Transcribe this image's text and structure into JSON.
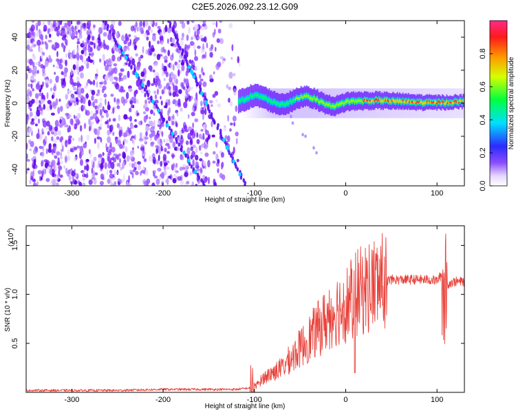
{
  "chart_data": [
    {
      "type": "heatmap",
      "title": "C2E5.2026.092.23.12.G09",
      "xlabel": "Height of straight line (km)",
      "ylabel": "Frequency (Hz)",
      "xlim": [
        -350,
        130
      ],
      "ylim": [
        -50,
        50
      ],
      "xticks": [
        -300,
        -200,
        -100,
        0,
        100
      ],
      "yticks": [
        -40,
        -20,
        0,
        20,
        40
      ],
      "colorbar": {
        "label": "Normalized spectral amplitude",
        "range": [
          0,
          1
        ],
        "ticks": [
          "0.0",
          "0.2",
          "0.4",
          "0.6",
          "0.8"
        ]
      },
      "features": {
        "noise_region_x": [
          -350,
          -110
        ],
        "tracked_signal_freq_hz": 0,
        "diagonal_track_1": [
          [
            -265,
            50
          ],
          [
            -155,
            -50
          ]
        ],
        "diagonal_track_2": [
          [
            -195,
            50
          ],
          [
            -110,
            -50
          ]
        ]
      }
    },
    {
      "type": "line",
      "xlabel": "Height of straight line (km)",
      "ylabel": "SNR (10 * v/v)",
      "y_multiplier": "(x10",
      "y_multiplier_exp": "4",
      "xlim": [
        -350,
        130
      ],
      "ylim": [
        0,
        1.7
      ],
      "xticks": [
        -300,
        -200,
        -100,
        0,
        100
      ],
      "yticks": [
        0.5,
        1.0,
        1.5
      ],
      "series": [
        {
          "name": "SNR",
          "color": "#e8413a",
          "x": [
            -350,
            -300,
            -250,
            -200,
            -150,
            -120,
            -100,
            -90,
            -80,
            -70,
            -60,
            -50,
            -40,
            -30,
            -20,
            -10,
            0,
            10,
            20,
            30,
            40,
            50,
            60,
            70,
            80,
            90,
            100,
            105,
            108,
            110,
            115,
            120,
            130
          ],
          "y": [
            0.02,
            0.02,
            0.02,
            0.03,
            0.03,
            0.03,
            0.05,
            0.15,
            0.2,
            0.25,
            0.35,
            0.45,
            0.55,
            0.65,
            0.75,
            0.85,
            0.9,
            1.0,
            1.05,
            1.1,
            1.13,
            1.15,
            1.15,
            1.15,
            1.15,
            1.15,
            1.14,
            1.2,
            0.7,
            1.1,
            1.12,
            1.13,
            1.13
          ]
        }
      ]
    }
  ]
}
